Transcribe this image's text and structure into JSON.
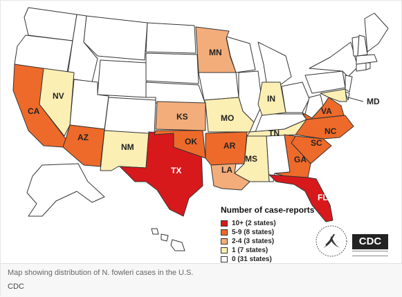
{
  "legend": {
    "title": "Number of case-reports",
    "items": [
      {
        "label": "10+  (2 states)",
        "color": "#d7191c"
      },
      {
        "label": "5-9  (8 states)",
        "color": "#ee6a2a"
      },
      {
        "label": "2-4  (3 states)",
        "color": "#f3ad7a"
      },
      {
        "label": "1    (7 states)",
        "color": "#fcefb4"
      },
      {
        "label": "0   (31 states)",
        "color": "#ffffff"
      }
    ]
  },
  "states": {
    "TX": {
      "label": "TX",
      "color": "#d7191c",
      "cases": "10+"
    },
    "FL": {
      "label": "FL",
      "color": "#d7191c",
      "cases": "10+"
    },
    "CA": {
      "label": "CA",
      "color": "#ee6a2a",
      "cases": "5-9"
    },
    "AZ": {
      "label": "AZ",
      "color": "#ee6a2a",
      "cases": "5-9"
    },
    "OK": {
      "label": "OK",
      "color": "#ee6a2a",
      "cases": "5-9"
    },
    "AR": {
      "label": "AR",
      "color": "#ee6a2a",
      "cases": "5-9"
    },
    "VA": {
      "label": "VA",
      "color": "#ee6a2a",
      "cases": "5-9"
    },
    "NC": {
      "label": "NC",
      "color": "#ee6a2a",
      "cases": "5-9"
    },
    "SC": {
      "label": "SC",
      "color": "#ee6a2a",
      "cases": "5-9"
    },
    "GA": {
      "label": "GA",
      "color": "#ee6a2a",
      "cases": "5-9"
    },
    "MN": {
      "label": "MN",
      "color": "#f3ad7a",
      "cases": "2-4"
    },
    "KS": {
      "label": "KS",
      "color": "#f3ad7a",
      "cases": "2-4"
    },
    "LA": {
      "label": "LA",
      "color": "#f3ad7a",
      "cases": "2-4"
    },
    "NV": {
      "label": "NV",
      "color": "#fcefb4",
      "cases": "1"
    },
    "NM": {
      "label": "NM",
      "color": "#fcefb4",
      "cases": "1"
    },
    "MO": {
      "label": "MO",
      "color": "#fcefb4",
      "cases": "1"
    },
    "IN": {
      "label": "IN",
      "color": "#fcefb4",
      "cases": "1"
    },
    "TN": {
      "label": "TN",
      "color": "#fcefb4",
      "cases": "1"
    },
    "MS": {
      "label": "MS",
      "color": "#fcefb4",
      "cases": "1"
    },
    "MD": {
      "label": "MD",
      "color": "#fcefb4",
      "cases": "1"
    }
  },
  "logos": {
    "cdc_text": "CDC"
  },
  "caption": {
    "text": "Map showing distribution of N. fowleri cases in the U.S.",
    "credit": "CDC"
  }
}
